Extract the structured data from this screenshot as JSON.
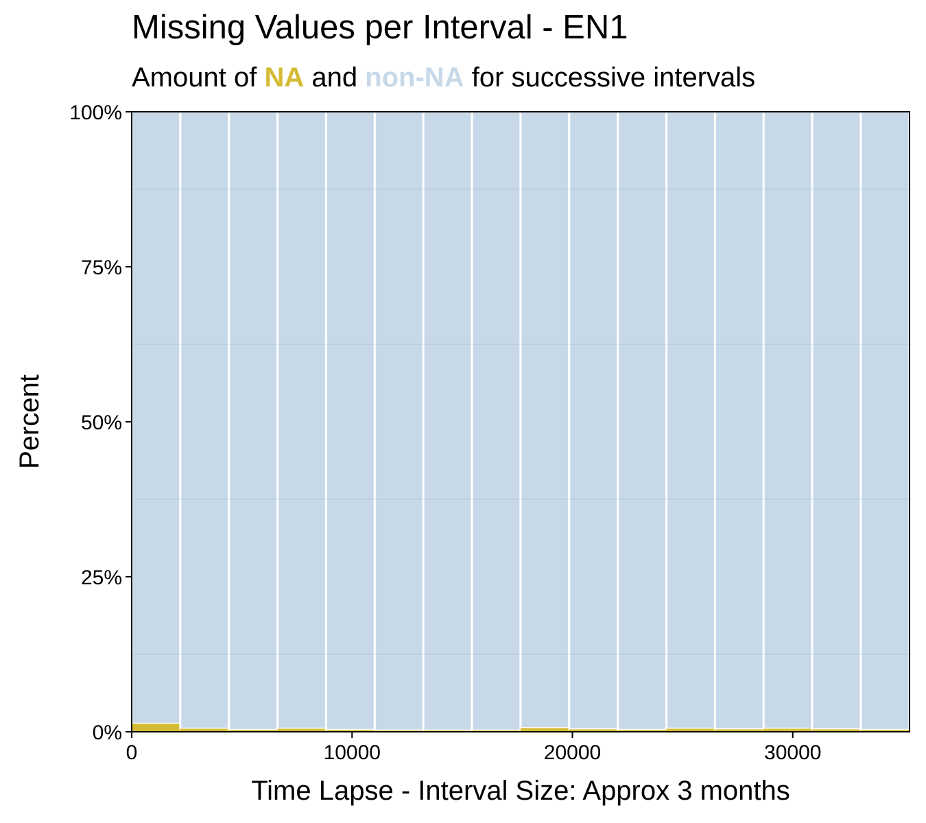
{
  "chart_data": {
    "type": "bar",
    "stacked": true,
    "title": "Missing Values per Interval - EN1",
    "subtitle": {
      "prefix": "Amount of ",
      "na_label": "NA",
      "middle": " and ",
      "nonna_label": "non-NA",
      "suffix": " for successive intervals"
    },
    "xlabel": "Time Lapse - Interval Size: Approx 3 months",
    "ylabel": "Percent",
    "xlim": [
      0,
      35300
    ],
    "ylim": [
      0,
      100
    ],
    "x_ticks": [
      0,
      10000,
      20000,
      30000
    ],
    "y_ticks": [
      0,
      25,
      50,
      75,
      100
    ],
    "y_tick_labels": [
      "0%",
      "25%",
      "50%",
      "75%",
      "100%"
    ],
    "grid": true,
    "interval_width": 2206,
    "intervals": [
      {
        "start": 0,
        "na_percent": 1.3
      },
      {
        "start": 2206,
        "na_percent": 0.5
      },
      {
        "start": 4412,
        "na_percent": 0.3
      },
      {
        "start": 6618,
        "na_percent": 0.5
      },
      {
        "start": 8824,
        "na_percent": 0.3
      },
      {
        "start": 11030,
        "na_percent": 0.2
      },
      {
        "start": 13236,
        "na_percent": 0.2
      },
      {
        "start": 15442,
        "na_percent": 0.2
      },
      {
        "start": 17648,
        "na_percent": 0.6
      },
      {
        "start": 19854,
        "na_percent": 0.4
      },
      {
        "start": 22060,
        "na_percent": 0.3
      },
      {
        "start": 24266,
        "na_percent": 0.5
      },
      {
        "start": 26472,
        "na_percent": 0.4
      },
      {
        "start": 28678,
        "na_percent": 0.5
      },
      {
        "start": 30884,
        "na_percent": 0.4
      },
      {
        "start": 33090,
        "na_percent": 0.3
      }
    ],
    "colors": {
      "na": "#D4BB33",
      "non_na": "#C7D9E8",
      "bar_border": "#ffffff",
      "grid": "#9FB0C0"
    }
  }
}
